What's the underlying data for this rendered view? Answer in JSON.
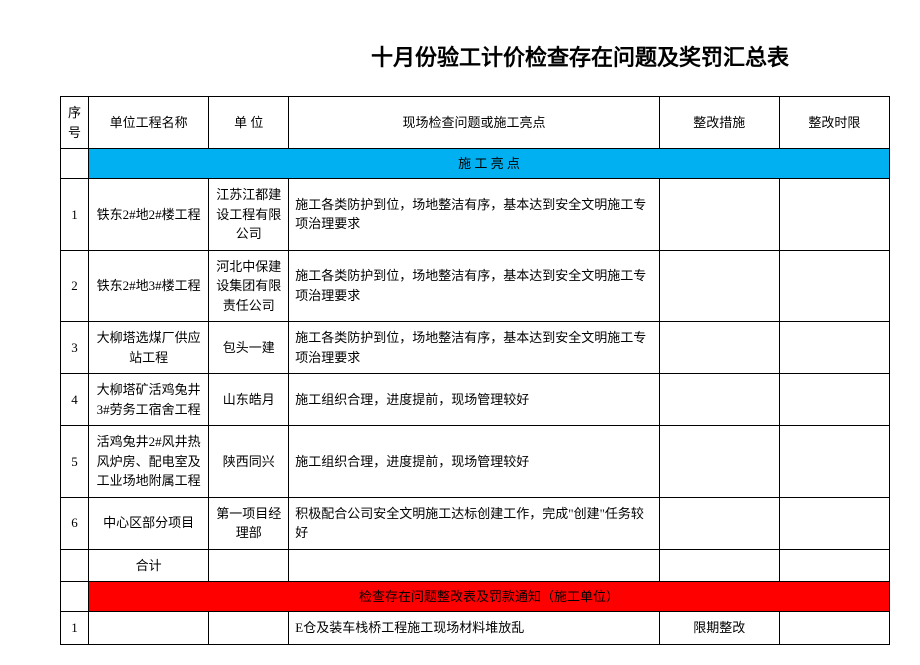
{
  "title": "十月份验工计价检查存在问题及奖罚汇总表",
  "columns": {
    "seq": "序号",
    "name": "单位工程名称",
    "unit": "单 位",
    "issue": "现场检查问题或施工亮点",
    "action": "整改措施",
    "deadline": "整改时限"
  },
  "section_highlight": "施 工 亮 点",
  "section_highlight_bg": "#00b0f0",
  "rows": [
    {
      "seq": "1",
      "name": "铁东2#地2#楼工程",
      "unit": "江苏江都建设工程有限公司",
      "issue": "施工各类防护到位，场地整洁有序，基本达到安全文明施工专项治理要求",
      "action": "",
      "deadline": ""
    },
    {
      "seq": "2",
      "name": "铁东2#地3#楼工程",
      "unit": "河北中保建设集团有限责任公司",
      "issue": "施工各类防护到位，场地整洁有序，基本达到安全文明施工专项治理要求",
      "action": "",
      "deadline": ""
    },
    {
      "seq": "3",
      "name": "大柳塔选煤厂供应站工程",
      "unit": "包头一建",
      "issue": "施工各类防护到位，场地整洁有序，基本达到安全文明施工专项治理要求",
      "action": "",
      "deadline": ""
    },
    {
      "seq": "4",
      "name": "大柳塔矿活鸡兔井3#劳务工宿舍工程",
      "unit": "山东皓月",
      "issue": "施工组织合理，进度提前，现场管理较好",
      "action": "",
      "deadline": ""
    },
    {
      "seq": "5",
      "name": "活鸡兔井2#风井热风炉房、配电室及工业场地附属工程",
      "unit": "陕西同兴",
      "issue": "施工组织合理，进度提前，现场管理较好",
      "action": "",
      "deadline": ""
    },
    {
      "seq": "6",
      "name": "中心区部分项目",
      "unit": "第一项目经理部",
      "issue": "积极配合公司安全文明施工达标创建工作，完成\"创建\"任务较好",
      "action": "",
      "deadline": ""
    }
  ],
  "subtotal_label": "合计",
  "section_issue": "检查存在问题整改表及罚款通知（施工单位）",
  "section_issue_bg": "#ff0000",
  "issue_rows": [
    {
      "seq": "1",
      "name": "",
      "unit": "",
      "issue": "E仓及装车栈桥工程施工现场材料堆放乱",
      "action": "限期整改",
      "deadline": ""
    }
  ]
}
